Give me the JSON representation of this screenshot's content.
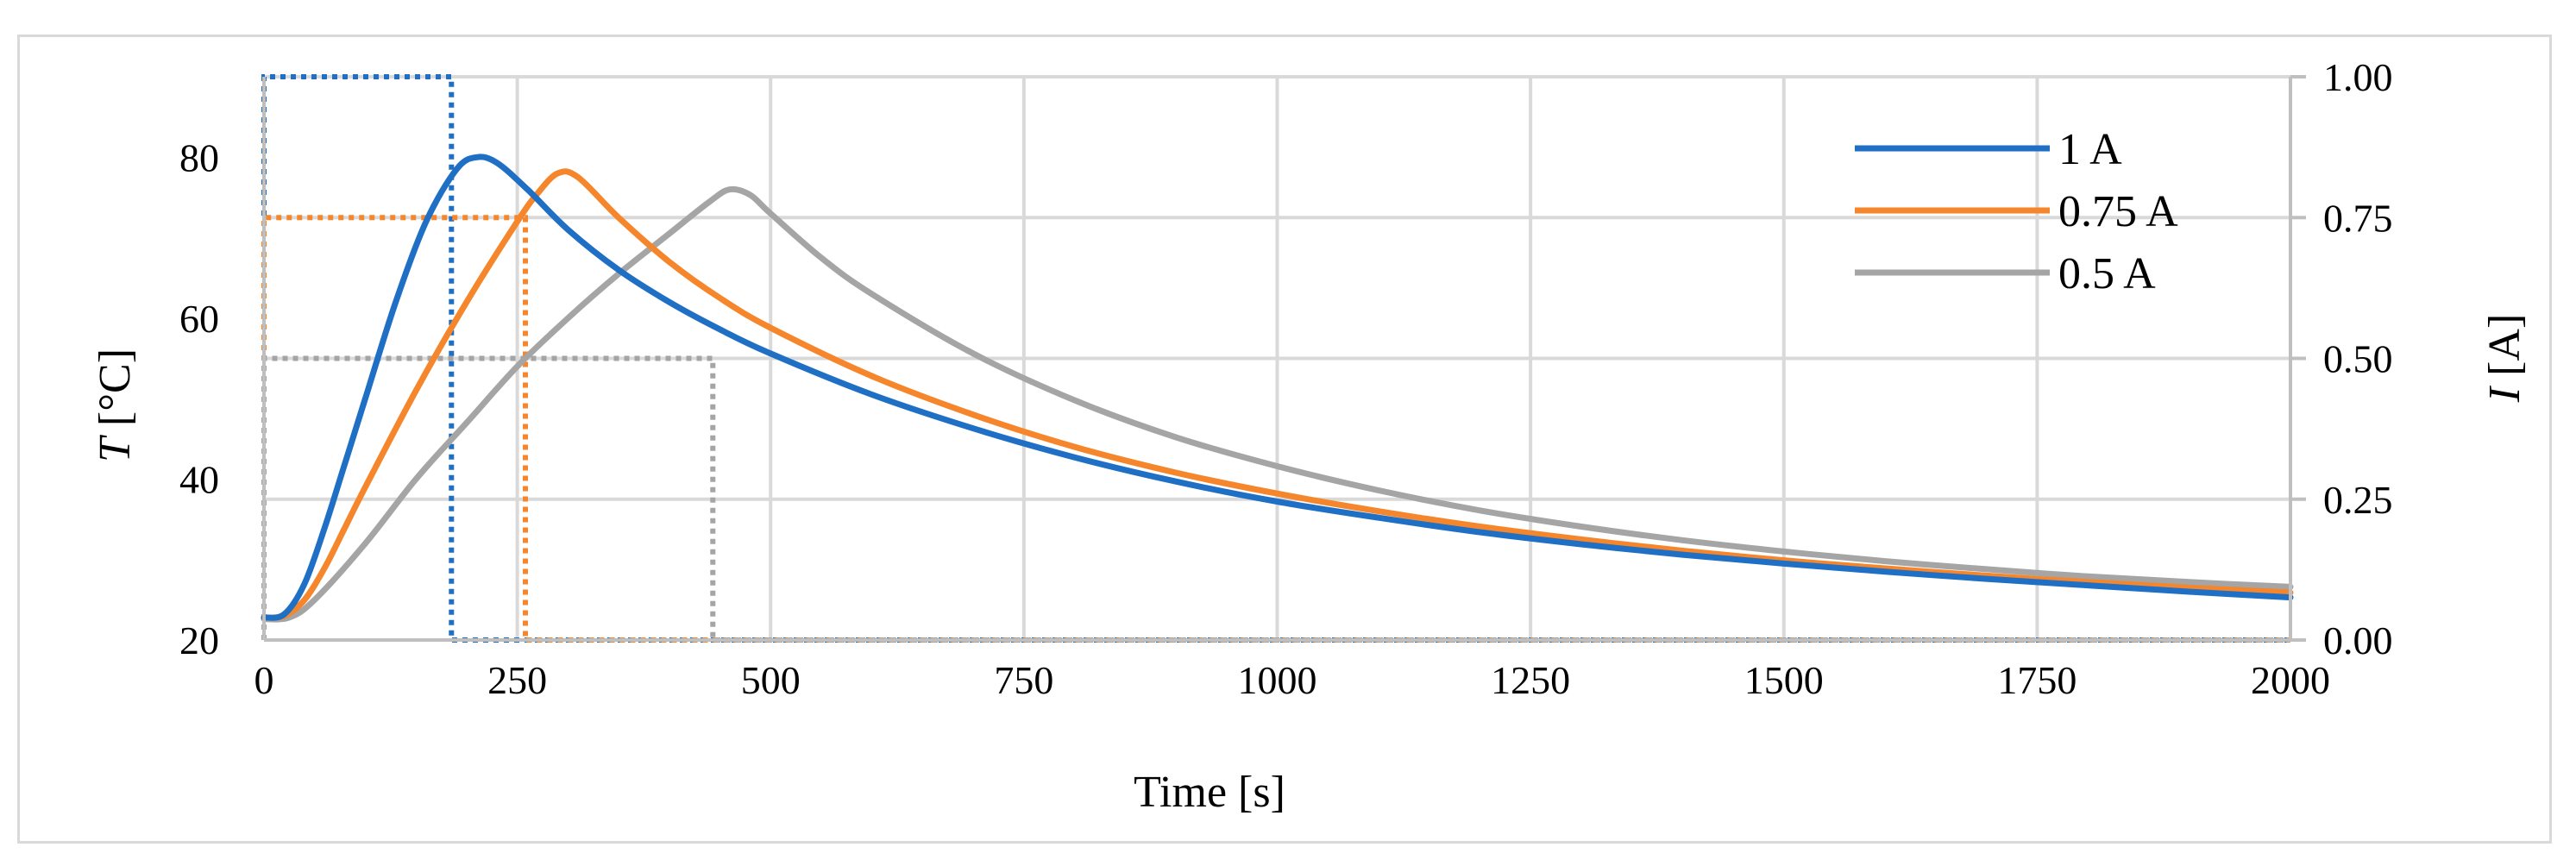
{
  "chart_data": {
    "type": "line",
    "title": "",
    "xlabel": "Time [s]",
    "ylabel_left_symbol": "T",
    "ylabel_left_unit": " [°C]",
    "ylabel_right_symbol": "I",
    "ylabel_right_unit": " [A]",
    "xlim": [
      0,
      2000
    ],
    "ylim_left": [
      20,
      90
    ],
    "ylim_right": [
      0,
      1
    ],
    "x_ticks": [
      0,
      250,
      500,
      750,
      1000,
      1250,
      1500,
      1750,
      2000
    ],
    "x_tick_labels": [
      "0",
      "250",
      "500",
      "750",
      "1000",
      "1250",
      "1500",
      "1750",
      "2000"
    ],
    "y_left_ticks": [
      20,
      40,
      60,
      80
    ],
    "y_left_tick_labels": [
      "20",
      "40",
      "60",
      "80"
    ],
    "y_right_ticks": [
      0,
      0.25,
      0.5,
      0.75,
      1
    ],
    "y_right_tick_labels": [
      "0.00",
      "0.25",
      "0.50",
      "0.75",
      "1.00"
    ],
    "grid": true,
    "legend_position": "top-right",
    "series": [
      {
        "name": "1 A",
        "color": "#1f6fc5",
        "temperature": {
          "x": [
            0,
            20,
            40,
            60,
            80,
            100,
            130,
            160,
            190,
            210,
            230,
            260,
            300,
            350,
            400,
            450,
            500,
            600,
            700,
            800,
            900,
            1000,
            1100,
            1200,
            1300,
            1400,
            1500,
            1600,
            1700,
            1800,
            1900,
            2000
          ],
          "y": [
            22.8,
            23.2,
            27,
            34,
            42,
            50,
            62,
            72,
            78.5,
            80,
            79.3,
            76,
            71,
            66,
            62,
            58.6,
            55.6,
            50.5,
            46.3,
            42.7,
            39.7,
            37.2,
            35.2,
            33.4,
            31.9,
            30.6,
            29.5,
            28.5,
            27.6,
            26.8,
            26,
            25.3
          ]
        },
        "current": {
          "x": [
            0,
            0,
            185,
            185,
            2000
          ],
          "y": [
            0,
            1,
            1,
            0,
            0
          ]
        }
      },
      {
        "name": "0.75 A",
        "color": "#f5862b",
        "temperature": {
          "x": [
            0,
            20,
            40,
            60,
            80,
            100,
            150,
            200,
            250,
            270,
            290,
            310,
            350,
            400,
            450,
            500,
            600,
            700,
            800,
            900,
            1000,
            1100,
            1200,
            1300,
            1400,
            1500,
            1600,
            1700,
            1800,
            1900,
            2000
          ],
          "y": [
            22.8,
            23,
            25,
            29,
            34,
            39,
            51,
            62,
            72,
            75.5,
            78,
            77.5,
            72.5,
            67,
            62.5,
            58.8,
            52.8,
            48,
            44,
            40.8,
            38.2,
            36,
            34.1,
            32.5,
            31.1,
            29.9,
            28.9,
            28,
            27.2,
            26.5,
            25.9
          ]
        },
        "current": {
          "x": [
            0,
            0,
            258,
            258,
            2000
          ],
          "y": [
            0,
            0.75,
            0.75,
            0,
            0
          ]
        }
      },
      {
        "name": "0.5 A",
        "color": "#a5a5a5",
        "temperature": {
          "x": [
            0,
            25,
            50,
            100,
            150,
            200,
            250,
            300,
            350,
            400,
            440,
            460,
            480,
            500,
            550,
            600,
            700,
            800,
            900,
            1000,
            1100,
            1200,
            1300,
            1400,
            1500,
            1600,
            1700,
            1800,
            1900,
            2000
          ],
          "y": [
            22.6,
            22.8,
            25,
            32,
            40,
            47,
            54,
            60,
            65.5,
            70.5,
            74.5,
            76,
            75.3,
            73,
            67.5,
            63,
            55.6,
            49.8,
            45.2,
            41.6,
            38.6,
            36.1,
            34.1,
            32.4,
            31,
            29.8,
            28.8,
            27.9,
            27.2,
            26.6
          ]
        },
        "current": {
          "x": [
            0,
            0,
            443,
            443,
            2000
          ],
          "y": [
            0,
            0.5,
            0.5,
            0,
            0
          ]
        }
      }
    ]
  }
}
